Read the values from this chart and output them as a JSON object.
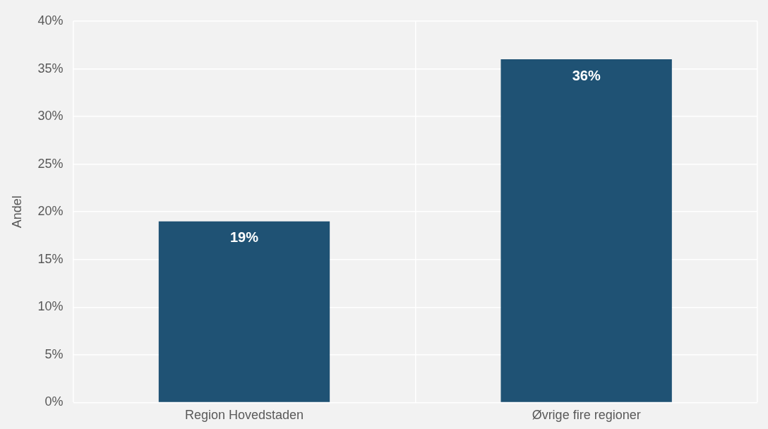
{
  "chart_data": {
    "type": "bar",
    "ylabel": "Andel",
    "categories": [
      "Region Hovedstaden",
      "Øvrige fire regioner"
    ],
    "values": [
      19,
      36
    ],
    "value_labels": [
      "19%",
      "36%"
    ],
    "color": "#1f5274",
    "ylim": [
      0,
      40
    ],
    "yticks": [
      {
        "value": 0,
        "label": "0%"
      },
      {
        "value": 5,
        "label": "5%"
      },
      {
        "value": 10,
        "label": "10%"
      },
      {
        "value": 15,
        "label": "15%"
      },
      {
        "value": 20,
        "label": "20%"
      },
      {
        "value": 25,
        "label": "25%"
      },
      {
        "value": 30,
        "label": "30%"
      },
      {
        "value": 35,
        "label": "35%"
      },
      {
        "value": 40,
        "label": "40%"
      }
    ],
    "grid": true,
    "legend": false
  }
}
